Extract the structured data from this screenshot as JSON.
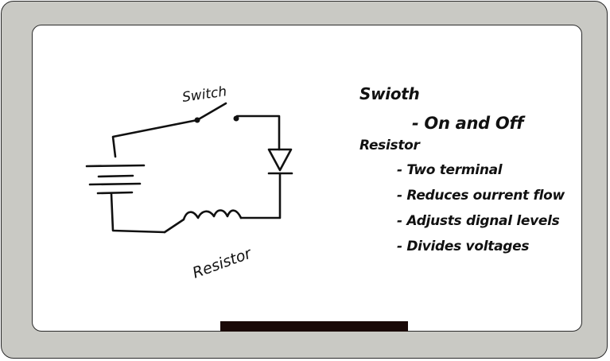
{
  "diagram": {
    "labels": {
      "switch": "Switch",
      "resistor": "Resistor"
    }
  },
  "notes": {
    "switch_heading": "Swioth",
    "switch_items": [
      "- On and Off"
    ],
    "resistor_heading": "Resistor",
    "resistor_items": [
      "- Two terminal",
      "- Reduces ourrent flow",
      "- Adjusts dignal levels",
      "- Divides voltages"
    ]
  },
  "colors": {
    "frame": "#c9c9c4",
    "board": "#ffffff",
    "ink": "#111111",
    "tray": "#1a0a08"
  }
}
